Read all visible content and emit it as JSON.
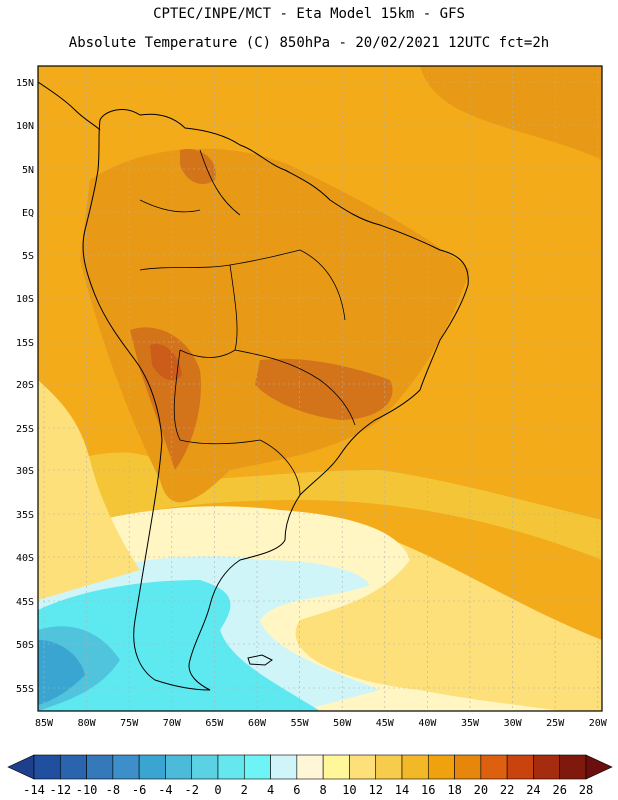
{
  "header": {
    "line1": "CPTEC/INPE/MCT -  Eta Model 15km - GFS",
    "line2": "Absolute Temperature (C) 850hPa - 20/02/2021 12UTC fct=2h"
  },
  "map": {
    "lat_labels": [
      "15N",
      "10N",
      "5N",
      "EQ",
      "5S",
      "10S",
      "15S",
      "20S",
      "25S",
      "30S",
      "35S",
      "40S",
      "45S",
      "50S",
      "55S"
    ],
    "lon_labels": [
      "85W",
      "80W",
      "75W",
      "70W",
      "65W",
      "60W",
      "55W",
      "50W",
      "45W",
      "40W",
      "35W",
      "30W",
      "25W",
      "20W"
    ],
    "colors": {
      "warm": "#e89a17",
      "base": "#f3ab1a",
      "hot": "#d4741a",
      "hotter": "#cc5c1a",
      "mid": "#f4c637",
      "light": "#fde079",
      "pale": "#fff6c4",
      "cream": "#fefbe6",
      "icy": "#cff5f8",
      "cyan": "#5ee8f0",
      "teal": "#4fc4dc",
      "blue": "#3ba5d2",
      "land_border": "#000000",
      "grid": "#b0b0b0"
    }
  },
  "colorbar": {
    "labels": [
      "-14",
      "-12",
      "-10",
      "-8",
      "-6",
      "-4",
      "-2",
      "0",
      "2",
      "4",
      "6",
      "8",
      "10",
      "12",
      "14",
      "16",
      "18",
      "20",
      "22",
      "24",
      "26",
      "28"
    ],
    "colors": [
      "#1d3f8c",
      "#1f4f9e",
      "#2a64ae",
      "#3579bb",
      "#3c8fc8",
      "#3ba5d2",
      "#4cbbd9",
      "#5bd2e4",
      "#66e6ee",
      "#6ef4f6",
      "#cff5f8",
      "#fff6d8",
      "#fff79a",
      "#fde079",
      "#f7cc4c",
      "#f3b828",
      "#f0a20e",
      "#e6870c",
      "#dc600f",
      "#c9430e",
      "#a62c0f",
      "#80190d",
      "#6a0f0d"
    ]
  }
}
